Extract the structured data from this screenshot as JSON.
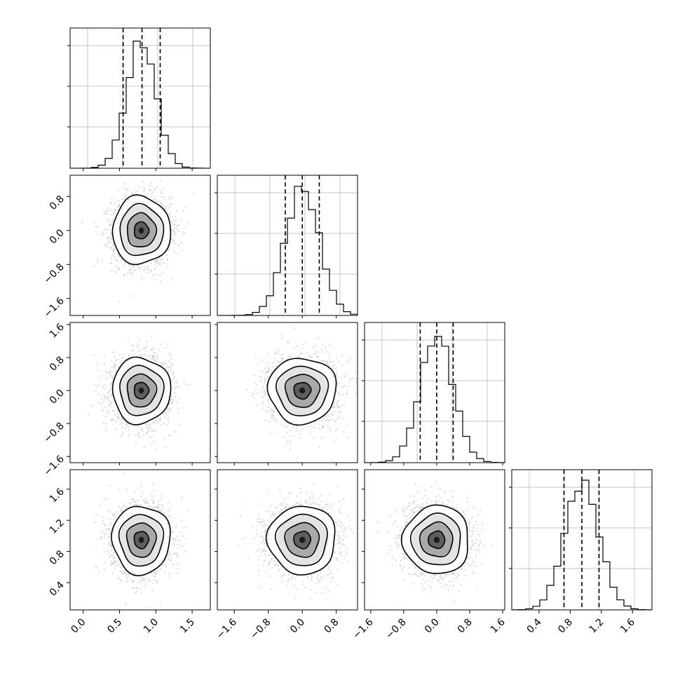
{
  "chart_data": {
    "type": "corner",
    "n_params": 4,
    "colors": {
      "background": "#ffffff",
      "frame": "#000000",
      "grid": "#b0b0b0",
      "histogram": "#000000",
      "quantile_lines": "#000000",
      "scatter_points": "#bdbdbd",
      "contours": "#000000"
    },
    "grid": true,
    "quantile_line_style": "dashed",
    "params": [
      {
        "mean": 0.8,
        "sd": 0.2,
        "range": [
          -0.18,
          1.75
        ],
        "quantiles": [
          0.55,
          0.81,
          1.06
        ],
        "ticks": [
          0.0,
          0.5,
          1.0,
          1.5
        ],
        "tick_labels": [
          "0.0",
          "0.5",
          "1.0",
          "1.5"
        ]
      },
      {
        "mean": 0.0,
        "sd": 0.4,
        "range": [
          -2.0,
          1.3
        ],
        "quantiles": [
          -0.4,
          0.0,
          0.4
        ],
        "ticks": [
          -1.6,
          -0.8,
          0.0,
          0.8
        ],
        "tick_labels": [
          "−1.6",
          "−0.8",
          "0.0",
          "0.8"
        ]
      },
      {
        "mean": 0.0,
        "sd": 0.4,
        "range": [
          -1.75,
          1.65
        ],
        "quantiles": [
          -0.4,
          0.0,
          0.4
        ],
        "ticks": [
          -1.6,
          -0.8,
          0.0,
          0.8,
          1.6
        ],
        "tick_labels": [
          "−1.6",
          "−0.8",
          "0.0",
          "0.8",
          "1.6"
        ]
      },
      {
        "mean": 0.95,
        "sd": 0.22,
        "range": [
          0.05,
          1.85
        ],
        "quantiles": [
          0.72,
          0.95,
          1.17
        ],
        "ticks": [
          0.4,
          0.8,
          1.2,
          1.6
        ],
        "tick_labels": [
          "0.4",
          "0.8",
          "1.2",
          "1.6"
        ]
      }
    ],
    "diagonal_histograms": [
      {
        "param": 0,
        "bins": 20,
        "peak_density": 1.0
      },
      {
        "param": 1,
        "bins": 20,
        "peak_density": 1.0
      },
      {
        "param": 2,
        "bins": 20,
        "peak_density": 1.0
      },
      {
        "param": 3,
        "bins": 20,
        "peak_density": 1.0
      }
    ],
    "contour_levels_sigma": [
      0.5,
      1.0,
      1.5,
      2.0
    ],
    "scatter_samples_per_panel": 2500
  }
}
